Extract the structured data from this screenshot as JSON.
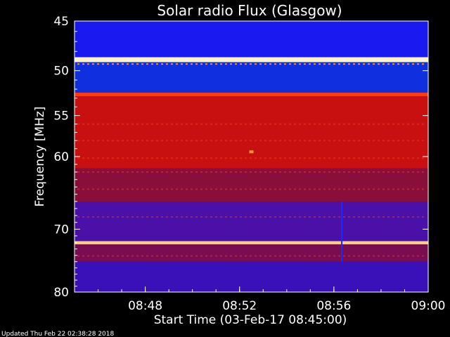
{
  "chart_data": {
    "type": "heatmap",
    "title": "Solar radio Flux (Glasgow)",
    "xlabel": "Start Time (03-Feb-17 08:45:00)",
    "ylabel": "Frequency [MHz]",
    "xlim": [
      "08:45",
      "09:00"
    ],
    "ylim": [
      45,
      80
    ],
    "y_axis_inverted": true,
    "y_scale": "log",
    "x_ticks": [
      "08:48",
      "08:52",
      "08:56",
      "09:00"
    ],
    "y_ticks": [
      "45",
      "50",
      "55",
      "60",
      "70",
      "80"
    ],
    "colormap": "blue-red-yellow-white",
    "bands": [
      {
        "from": 45.0,
        "to": 48.6,
        "level": "low",
        "color": "#1a1af0"
      },
      {
        "from": 48.6,
        "to": 49.1,
        "level": "very high",
        "color": "#fff4c8"
      },
      {
        "from": 49.1,
        "to": 52.4,
        "level": "low",
        "color": "#1030e0"
      },
      {
        "from": 52.4,
        "to": 52.8,
        "level": "high",
        "color": "#ff3a10"
      },
      {
        "from": 52.8,
        "to": 61.5,
        "level": "medium",
        "color": "#c81010"
      },
      {
        "from": 61.5,
        "to": 66.0,
        "level": "medium-low",
        "color": "#8a0e3a"
      },
      {
        "from": 66.0,
        "to": 71.8,
        "level": "low",
        "color": "#4a10a8"
      },
      {
        "from": 71.8,
        "to": 72.3,
        "level": "very high",
        "color": "#ffd07a"
      },
      {
        "from": 72.3,
        "to": 75.0,
        "level": "medium-low",
        "color": "#7a0c50"
      },
      {
        "from": 75.0,
        "to": 80.0,
        "level": "low",
        "color": "#3a10b8"
      }
    ],
    "events": [
      {
        "time": "08:52:30",
        "freq": 59.4,
        "note": "bright spot"
      },
      {
        "time": "08:56:20",
        "from": 66.0,
        "to": 75.0,
        "note": "vertical streak"
      }
    ]
  },
  "footer": {
    "updated": "Updated Thu Feb 22 02:38:28 2018"
  },
  "colors": {
    "background": "#000000",
    "axis": "#ffffff"
  }
}
